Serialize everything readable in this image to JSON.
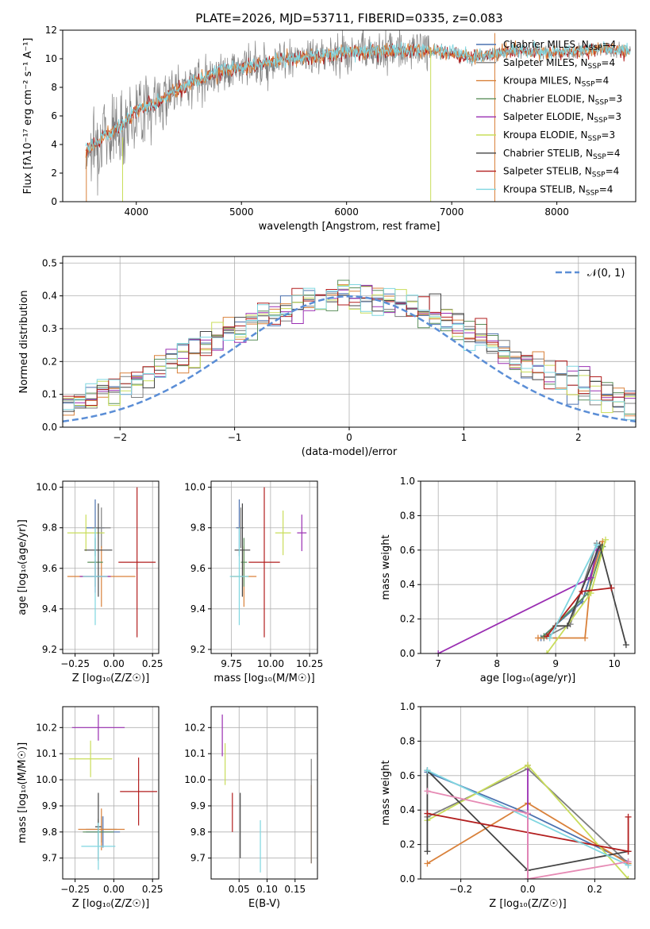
{
  "figure_title": "PLATE=2026, MJD=53711, FIBERID=0335, z=0.083",
  "colors": {
    "Chabrier MILES": "#4c72b0",
    "Salpeter MILES": "#7f7f7f",
    "Kroupa MILES": "#d9813a",
    "Chabrier ELODIE": "#5b8f5b",
    "Salpeter ELODIE": "#9a2eb2",
    "Kroupa ELODIE": "#c9dd5a",
    "Chabrier STELIB": "#444444",
    "Salpeter STELIB": "#b21e1e",
    "Kroupa STELIB": "#7fd6e0",
    "normal": "#5b8ed6",
    "grid": "#b0b0b0"
  },
  "legend": [
    {
      "label": "Chabrier MILES, N",
      "sub": "SSP",
      "suffix": "=4"
    },
    {
      "label": "Salpeter MILES, N",
      "sub": "SSP",
      "suffix": "=4"
    },
    {
      "label": "Kroupa MILES, N",
      "sub": "SSP",
      "suffix": "=4"
    },
    {
      "label": "Chabrier ELODIE, N",
      "sub": "SSP",
      "suffix": "=3"
    },
    {
      "label": "Salpeter ELODIE, N",
      "sub": "SSP",
      "suffix": "=3"
    },
    {
      "label": "Kroupa ELODIE, N",
      "sub": "SSP",
      "suffix": "=3"
    },
    {
      "label": "Chabrier STELIB, N",
      "sub": "SSP",
      "suffix": "=4"
    },
    {
      "label": "Salpeter STELIB, N",
      "sub": "SSP",
      "suffix": "=4"
    },
    {
      "label": "Kroupa STELIB, N",
      "sub": "SSP",
      "suffix": "=4"
    }
  ],
  "chart_data": [
    {
      "id": "spectrum",
      "type": "line",
      "xlabel": "wavelength [Angstrom, rest frame]",
      "ylabel": "Flux [fλ10⁻¹⁷ erg cm⁻² s⁻¹ A⁻¹]",
      "xlim": [
        3300,
        8750
      ],
      "ylim": [
        0,
        12
      ],
      "xticks": [
        4000,
        5000,
        6000,
        7000,
        8000
      ],
      "yticks": [
        0,
        2,
        4,
        6,
        8,
        10,
        12
      ],
      "continuum": [
        [
          3520,
          3.6
        ],
        [
          3700,
          4.6
        ],
        [
          3850,
          5.3
        ],
        [
          4000,
          6.4
        ],
        [
          4200,
          7.0
        ],
        [
          4500,
          8.3
        ],
        [
          4800,
          9.1
        ],
        [
          5200,
          9.7
        ],
        [
          5600,
          10.1
        ],
        [
          6000,
          10.4
        ],
        [
          6500,
          10.6
        ],
        [
          6800,
          10.6
        ],
        [
          7200,
          10.1
        ],
        [
          7600,
          10.6
        ],
        [
          8000,
          10.4
        ],
        [
          8400,
          10.7
        ],
        [
          8700,
          10.6
        ]
      ],
      "data_range": [
        3520,
        8700
      ],
      "grid": false,
      "legend_position": "right"
    },
    {
      "id": "residuals",
      "type": "histogram",
      "xlabel": "(data-model)/error",
      "ylabel": "Normed distribution",
      "xlim": [
        -2.5,
        2.5
      ],
      "ylim": [
        0,
        0.52
      ],
      "xticks": [
        -2,
        -1,
        0,
        1,
        2
      ],
      "yticks": [
        0,
        0.1,
        0.2,
        0.3,
        0.4,
        0.5
      ],
      "bin_width": 0.1,
      "bins_from": -2.5,
      "bins_to": 2.5,
      "normal_label": "𝒩(0, 1)",
      "grid": true,
      "legend_position": "top-right"
    },
    {
      "id": "z-age",
      "type": "errorbar",
      "xlabel": "Z [log₁₀(Z/Z☉)]",
      "ylabel": "age  [log₁₀(age/yr)]",
      "xlim": [
        -0.33,
        0.29
      ],
      "ylim": [
        9.18,
        10.03
      ],
      "xticks": [
        -0.25,
        0.0,
        0.25
      ],
      "yticks": [
        9.2,
        9.4,
        9.6,
        9.8,
        10.0
      ],
      "tick_labels_x": [
        "−0.25",
        "0.00",
        "0.25"
      ],
      "points": [
        {
          "model": "Chabrier MILES",
          "x": -0.12,
          "y": 9.8,
          "xerr": 0.06,
          "yerr": 0.14
        },
        {
          "model": "Salpeter MILES",
          "x": -0.08,
          "y": 9.8,
          "xerr": 0.06,
          "yerr": 0.1
        },
        {
          "model": "Kroupa MILES",
          "x": -0.08,
          "y": 9.56,
          "xerr": 0.22,
          "yerr": 0.15
        },
        {
          "model": "Chabrier ELODIE",
          "x": -0.12,
          "y": 9.63,
          "xerr": 0.05,
          "yerr": 0.12
        },
        {
          "model": "Salpeter ELODIE",
          "x": -0.12,
          "y": 9.56,
          "xerr": 0.1,
          "yerr": 0.08
        },
        {
          "model": "Kroupa ELODIE",
          "x": -0.18,
          "y": 9.775,
          "xerr": 0.12,
          "yerr": 0.09
        },
        {
          "model": "Chabrier STELIB",
          "x": -0.1,
          "y": 9.69,
          "xerr": 0.09,
          "yerr": 0.23
        },
        {
          "model": "Salpeter STELIB",
          "x": 0.15,
          "y": 9.63,
          "xerr": 0.12,
          "yerr": 0.37
        },
        {
          "model": "Kroupa STELIB",
          "x": -0.12,
          "y": 9.56,
          "xerr": 0.08,
          "yerr": 0.24
        }
      ]
    },
    {
      "id": "mass-age",
      "type": "errorbar",
      "xlabel": "mass [log₁₀(M/M☉)]",
      "ylabel": "",
      "xlim": [
        9.62,
        10.3
      ],
      "ylim": [
        9.18,
        10.03
      ],
      "xticks": [
        9.75,
        10.0,
        10.25
      ],
      "yticks": [
        9.2,
        9.4,
        9.6,
        9.8,
        10.0
      ],
      "tick_labels_x": [
        "9.75",
        "10.00",
        "10.25"
      ],
      "points": [
        {
          "model": "Chabrier MILES",
          "x": 9.8,
          "y": 9.8,
          "xerr": 0.02,
          "yerr": 0.14
        },
        {
          "model": "Salpeter MILES",
          "x": 9.81,
          "y": 9.8,
          "xerr": 0.02,
          "yerr": 0.1
        },
        {
          "model": "Kroupa MILES",
          "x": 9.83,
          "y": 9.56,
          "xerr": 0.08,
          "yerr": 0.15
        },
        {
          "model": "Chabrier ELODIE",
          "x": 9.83,
          "y": 9.63,
          "xerr": 0.02,
          "yerr": 0.12
        },
        {
          "model": "Salpeter ELODIE",
          "x": 10.2,
          "y": 9.775,
          "xerr": 0.03,
          "yerr": 0.09
        },
        {
          "model": "Kroupa ELODIE",
          "x": 10.08,
          "y": 9.775,
          "xerr": 0.05,
          "yerr": 0.11
        },
        {
          "model": "Chabrier STELIB",
          "x": 9.82,
          "y": 9.69,
          "xerr": 0.05,
          "yerr": 0.23
        },
        {
          "model": "Salpeter STELIB",
          "x": 9.96,
          "y": 9.63,
          "xerr": 0.1,
          "yerr": 0.37
        },
        {
          "model": "Kroupa STELIB",
          "x": 9.8,
          "y": 9.56,
          "xerr": 0.06,
          "yerr": 0.24
        }
      ]
    },
    {
      "id": "age-weight",
      "type": "line",
      "xlabel": "age  [log₁₀(age/yr)]",
      "ylabel": "mass weight",
      "xlim": [
        6.7,
        10.35
      ],
      "ylim": [
        0,
        1
      ],
      "xticks": [
        7,
        8,
        9,
        10
      ],
      "yticks": [
        0,
        0.2,
        0.4,
        0.6,
        0.8,
        1.0
      ],
      "series": [
        {
          "model": "Chabrier MILES",
          "points": [
            [
              8.75,
              0.09
            ],
            [
              9.45,
              0.3
            ],
            [
              9.75,
              0.62
            ]
          ]
        },
        {
          "model": "Salpeter MILES",
          "points": [
            [
              8.8,
              0.09
            ],
            [
              9.25,
              0.17
            ],
            [
              9.7,
              0.64
            ]
          ]
        },
        {
          "model": "Kroupa MILES",
          "points": [
            [
              8.7,
              0.09
            ],
            [
              9.5,
              0.09
            ],
            [
              9.6,
              0.44
            ],
            [
              9.8,
              0.65
            ]
          ]
        },
        {
          "model": "Chabrier ELODIE",
          "points": [
            [
              8.8,
              0.1
            ],
            [
              9.55,
              0.35
            ],
            [
              9.8,
              0.62
            ]
          ]
        },
        {
          "model": "Salpeter ELODIE",
          "points": [
            [
              7.0,
              0.0
            ],
            [
              9.6,
              0.44
            ],
            [
              9.7,
              0.6
            ]
          ]
        },
        {
          "model": "Kroupa ELODIE",
          "points": [
            [
              8.85,
              0.0
            ],
            [
              9.6,
              0.35
            ],
            [
              9.85,
              0.66
            ]
          ]
        },
        {
          "model": "Chabrier STELIB",
          "points": [
            [
              9.0,
              0.16
            ],
            [
              9.2,
              0.16
            ],
            [
              9.75,
              0.63
            ],
            [
              10.2,
              0.05
            ]
          ]
        },
        {
          "model": "Salpeter STELIB",
          "points": [
            [
              8.85,
              0.1
            ],
            [
              9.45,
              0.36
            ],
            [
              9.95,
              0.38
            ]
          ]
        },
        {
          "model": "Kroupa STELIB",
          "points": [
            [
              8.9,
              0.09
            ],
            [
              9.7,
              0.63
            ]
          ]
        }
      ]
    },
    {
      "id": "z-mass",
      "type": "errorbar",
      "xlabel": "Z [log₁₀(Z/Z☉)]",
      "ylabel": "mass [log₁₀(M/M☉)]",
      "xlim": [
        -0.33,
        0.29
      ],
      "ylim": [
        9.62,
        10.28
      ],
      "xticks": [
        -0.25,
        0.0,
        0.25
      ],
      "yticks": [
        9.7,
        9.8,
        9.9,
        10.0,
        10.1,
        10.2
      ],
      "tick_labels_x": [
        "−0.25",
        "0.00",
        "0.25"
      ],
      "points": [
        {
          "model": "Chabrier MILES",
          "x": -0.07,
          "y": 9.8,
          "xerr": 0.11,
          "yerr": 0.06
        },
        {
          "model": "Salpeter MILES",
          "x": -0.08,
          "y": 9.81,
          "xerr": 0.1,
          "yerr": 0.05
        },
        {
          "model": "Kroupa MILES",
          "x": -0.08,
          "y": 9.81,
          "xerr": 0.15,
          "yerr": 0.08
        },
        {
          "model": "Chabrier ELODIE",
          "x": -0.1,
          "y": 9.8,
          "xerr": 0.1,
          "yerr": 0.05
        },
        {
          "model": "Salpeter ELODIE",
          "x": -0.1,
          "y": 10.2,
          "xerr": 0.17,
          "yerr": 0.05
        },
        {
          "model": "Kroupa ELODIE",
          "x": -0.15,
          "y": 10.08,
          "xerr": 0.14,
          "yerr": 0.07
        },
        {
          "model": "Chabrier STELIB",
          "x": -0.1,
          "y": 9.82,
          "xerr": 0.02,
          "yerr": 0.13
        },
        {
          "model": "Salpeter STELIB",
          "x": 0.16,
          "y": 9.955,
          "xerr": 0.12,
          "yerr": 0.13
        },
        {
          "model": "Kroupa STELIB",
          "x": -0.1,
          "y": 9.745,
          "xerr": 0.11,
          "yerr": 0.09
        }
      ]
    },
    {
      "id": "ebv-mass",
      "type": "errorbar",
      "xlabel": "E(B-V)",
      "ylabel": "",
      "xlim": [
        0.0,
        0.19
      ],
      "ylim": [
        9.62,
        10.28
      ],
      "xticks": [
        0.05,
        0.1,
        0.15
      ],
      "yticks": [
        9.7,
        9.8,
        9.9,
        10.0,
        10.1,
        10.2
      ],
      "tick_labels_x": [
        "0.05",
        "0.10",
        "0.15"
      ],
      "points": [
        {
          "model": "Salpeter ELODIE",
          "x": 0.02,
          "y": 10.17,
          "xerr": 0,
          "yerr": 0.08
        },
        {
          "model": "Kroupa ELODIE",
          "x": 0.025,
          "y": 10.06,
          "xerr": 0,
          "yerr": 0.08
        },
        {
          "model": "Salpeter STELIB",
          "x": 0.038,
          "y": 9.875,
          "xerr": 0,
          "yerr": 0.075
        },
        {
          "model": "Chabrier STELIB",
          "x": 0.052,
          "y": 9.825,
          "xerr": 0,
          "yerr": 0.125
        },
        {
          "model": "Kroupa STELIB",
          "x": 0.088,
          "y": 9.745,
          "xerr": 0,
          "yerr": 0.1
        },
        {
          "model": "Kroupa MILES",
          "x": 0.179,
          "y": 9.83,
          "xerr": 0,
          "yerr": 0.15
        },
        {
          "model": "Salpeter MILES",
          "x": 0.179,
          "y": 9.88,
          "xerr": 0,
          "yerr": 0.2
        }
      ]
    },
    {
      "id": "z-weight",
      "type": "line",
      "xlabel": "Z [log₁₀(Z/Z☉)]",
      "ylabel": "mass weight",
      "xlim": [
        -0.32,
        0.32
      ],
      "ylim": [
        0,
        1
      ],
      "xticks": [
        -0.2,
        0.0,
        0.2
      ],
      "yticks": [
        0,
        0.2,
        0.4,
        0.6,
        0.8,
        1.0
      ],
      "tick_labels_x": [
        "−0.2",
        "0.0",
        "0.2"
      ],
      "series": [
        {
          "model": "Chabrier MILES",
          "points": [
            [
              -0.3,
              0.62
            ],
            [
              0.0,
              0.38
            ],
            [
              0.3,
              0.1
            ]
          ]
        },
        {
          "model": "Salpeter MILES",
          "points": [
            [
              -0.3,
              0.36
            ],
            [
              0.0,
              0.64
            ],
            [
              0.3,
              0.09
            ]
          ]
        },
        {
          "model": "Kroupa MILES",
          "points": [
            [
              -0.3,
              0.09
            ],
            [
              0.0,
              0.44
            ],
            [
              0.3,
              0.09
            ]
          ]
        },
        {
          "model": "Salpeter ELODIE",
          "points": [
            [
              0.0,
              0.0
            ],
            [
              0.0,
              0.66
            ]
          ]
        },
        {
          "model": "Kroupa ELODIE",
          "points": [
            [
              -0.3,
              0.34
            ],
            [
              0.0,
              0.66
            ],
            [
              0.3,
              0.0
            ]
          ]
        },
        {
          "model": "Chabrier STELIB",
          "points": [
            [
              -0.3,
              0.16
            ],
            [
              -0.3,
              0.63
            ],
            [
              0.0,
              0.05
            ],
            [
              0.3,
              0.16
            ]
          ]
        },
        {
          "model": "Salpeter STELIB",
          "points": [
            [
              -0.3,
              0.38
            ],
            [
              0.3,
              0.16
            ],
            [
              0.3,
              0.36
            ]
          ]
        },
        {
          "model": "Kroupa STELIB",
          "points": [
            [
              -0.3,
              0.63
            ],
            [
              0.3,
              0.08
            ]
          ]
        },
        {
          "model": "Pink",
          "points": [
            [
              -0.3,
              0.51
            ],
            [
              0.0,
              0.38
            ],
            [
              0.0,
              0.0
            ],
            [
              0.3,
              0.1
            ]
          ]
        }
      ]
    }
  ]
}
